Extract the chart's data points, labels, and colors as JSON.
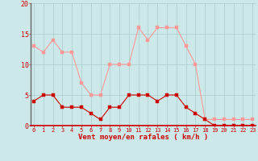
{
  "hours": [
    0,
    1,
    2,
    3,
    4,
    5,
    6,
    7,
    8,
    9,
    10,
    11,
    12,
    13,
    14,
    15,
    16,
    17,
    18,
    19,
    20,
    21,
    22,
    23
  ],
  "wind_avg": [
    4,
    5,
    5,
    3,
    3,
    3,
    2,
    1,
    3,
    3,
    5,
    5,
    5,
    4,
    5,
    5,
    3,
    2,
    1,
    0,
    0,
    0,
    0,
    0
  ],
  "wind_gust": [
    13,
    12,
    14,
    12,
    12,
    7,
    5,
    5,
    10,
    10,
    10,
    16,
    14,
    16,
    16,
    16,
    13,
    10,
    1,
    1,
    1,
    1,
    1,
    1
  ],
  "bg_color": "#cce8e8",
  "grid_color": "#aacccc",
  "line_avg_color": "#cc0000",
  "line_gust_color": "#ff9999",
  "marker_size": 2.5,
  "xlabel": "Vent moyen/en rafales ( km/h )",
  "xlabel_color": "#cc0000",
  "tick_color": "#cc0000",
  "axis_line_color": "#666666",
  "ylim": [
    0,
    20
  ],
  "yticks": [
    0,
    5,
    10,
    15,
    20
  ],
  "figsize": [
    3.2,
    2.0
  ],
  "dpi": 100
}
